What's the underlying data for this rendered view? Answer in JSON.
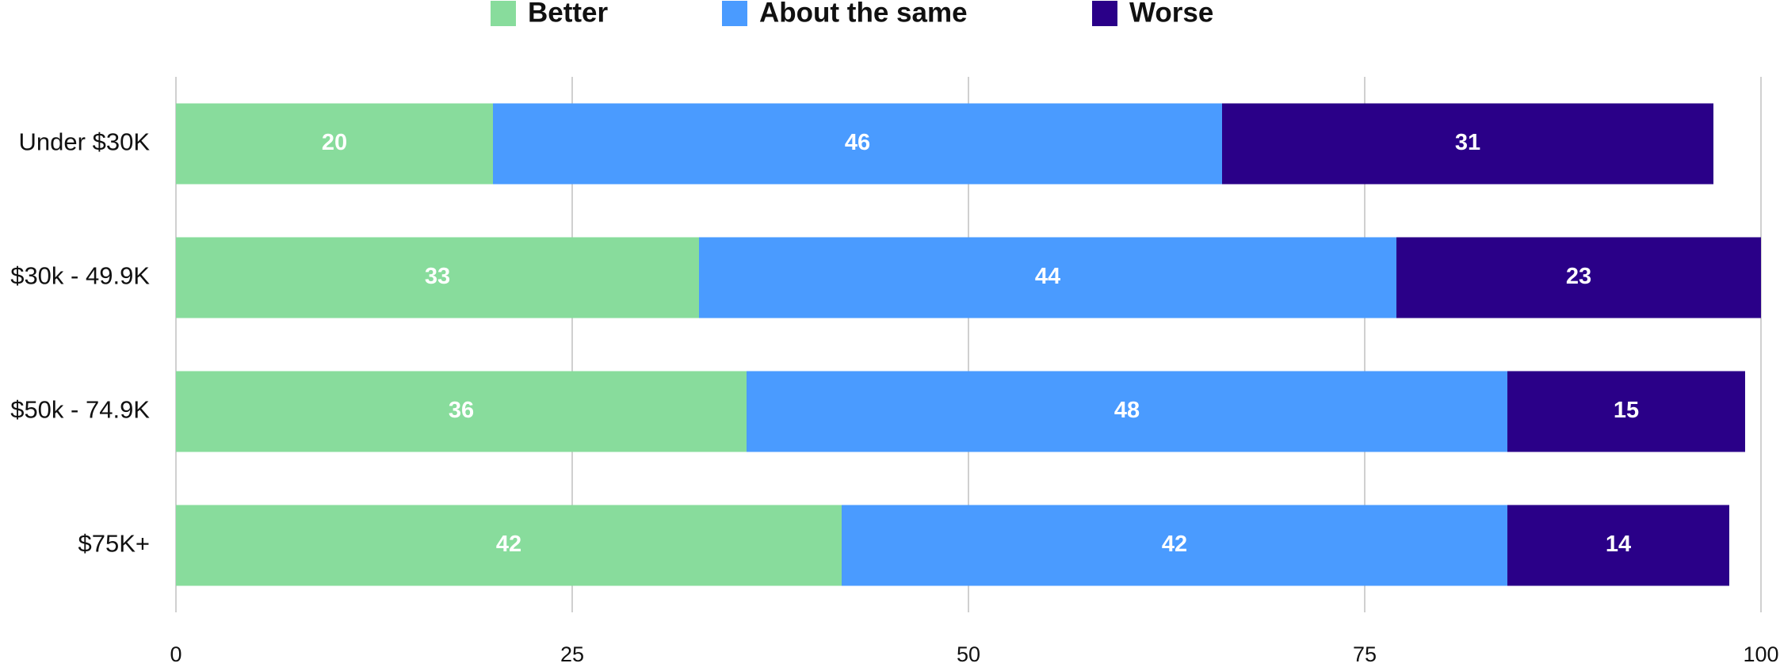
{
  "chart_data": {
    "type": "stacked_barh",
    "categories": [
      "Under $30K",
      "$30k - 49.9K",
      "$50k - 74.9K",
      "$75K+"
    ],
    "series": [
      {
        "name": "Better",
        "color": "#88dc9c",
        "values": [
          20,
          33,
          36,
          42
        ]
      },
      {
        "name": "About the same",
        "color": "#4a9bff",
        "values": [
          46,
          44,
          48,
          42
        ]
      },
      {
        "name": "Worse",
        "color": "#2a0088",
        "values": [
          31,
          23,
          15,
          14
        ]
      }
    ],
    "xlim": [
      0,
      100
    ],
    "xticks": [
      0,
      25,
      50,
      75,
      100
    ],
    "grid": true,
    "legend": "top"
  }
}
